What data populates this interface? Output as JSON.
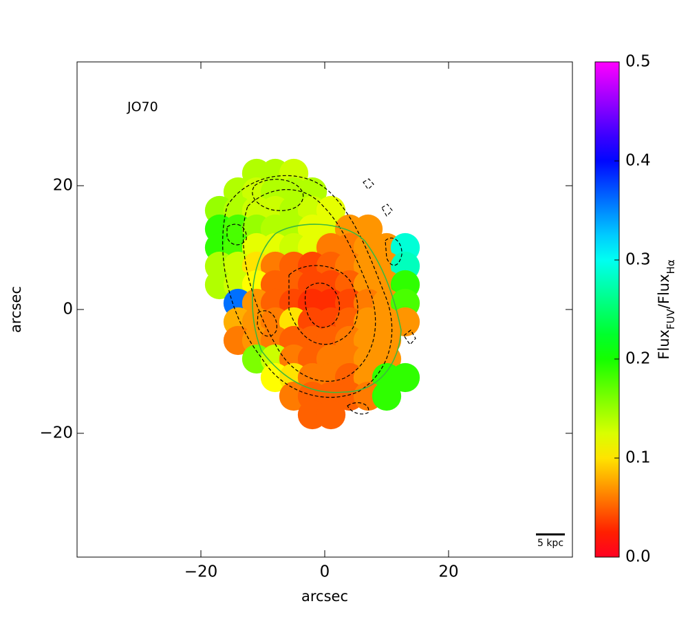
{
  "chart_data": {
    "type": "map",
    "annotation": "JO70",
    "scalebar_label": "5 kpc",
    "xlabel": "arcsec",
    "ylabel": "arcsec",
    "colorbar_label": [
      "Flux",
      "FUV",
      "/Flux",
      "Hα"
    ],
    "colormap": "gist_rainbow",
    "xlim": [
      -40,
      40
    ],
    "ylim": [
      -40,
      40
    ],
    "xticks": [
      {
        "value": -20,
        "label": "−20"
      },
      0,
      20
    ],
    "yticks": [
      {
        "value": -20,
        "label": "−20"
      },
      0,
      20
    ],
    "clim": [
      0,
      0.5
    ],
    "cticks": [
      {
        "value": 0,
        "label": "0.0"
      },
      0.1,
      0.2,
      0.3,
      0.4,
      0.5
    ],
    "x": [
      -11,
      -8,
      -5,
      -14,
      -11,
      -8,
      -5,
      -2,
      -17,
      -14,
      -11,
      -8,
      -5,
      -2,
      1,
      -17,
      -14,
      -11,
      -8,
      -5,
      -2,
      1,
      4,
      7,
      -17,
      -14,
      -11,
      -8,
      -5,
      -2,
      1,
      4,
      7,
      10,
      13,
      -17,
      -14,
      -11,
      -8,
      -5,
      -2,
      1,
      4,
      7,
      10,
      13,
      -17,
      -14,
      -11,
      -8,
      -5,
      -2,
      1,
      4,
      7,
      10,
      13,
      -14,
      -11,
      -8,
      -5,
      -2,
      1,
      4,
      7,
      10,
      13,
      -14,
      -11,
      -8,
      -5,
      -2,
      1,
      4,
      7,
      10,
      13,
      -14,
      -11,
      -8,
      -5,
      -2,
      1,
      4,
      7,
      10,
      -11,
      -8,
      -5,
      -2,
      1,
      4,
      7,
      10,
      -8,
      -5,
      -2,
      1,
      4,
      7,
      10,
      13,
      -5,
      -2,
      1,
      4,
      7,
      10,
      -2,
      1
    ],
    "y": [
      22,
      22,
      22,
      19,
      19,
      19,
      19,
      19,
      16,
      16,
      16,
      16,
      16,
      16,
      16,
      13,
      13,
      13,
      13,
      13,
      13,
      13,
      13,
      13,
      10,
      10,
      10,
      10,
      10,
      10,
      10,
      10,
      10,
      10,
      10,
      7,
      7,
      7,
      7,
      7,
      7,
      7,
      7,
      7,
      7,
      7,
      4,
      4,
      4,
      4,
      4,
      4,
      4,
      4,
      4,
      4,
      4,
      1,
      1,
      1,
      1,
      1,
      1,
      1,
      1,
      1,
      1,
      -2,
      -2,
      -2,
      -2,
      -2,
      -2,
      -2,
      -2,
      -2,
      -2,
      -5,
      -5,
      -5,
      -5,
      -5,
      -5,
      -5,
      -5,
      -5,
      -8,
      -8,
      -8,
      -8,
      -8,
      -8,
      -8,
      -8,
      -11,
      -11,
      -11,
      -11,
      -11,
      -11,
      -11,
      -11,
      -14,
      -14,
      -14,
      -14,
      -14,
      -14,
      -17,
      -17
    ],
    "values": [
      0.14,
      0.14,
      0.13,
      0.14,
      0.13,
      0.14,
      0.14,
      0.14,
      0.15,
      0.14,
      0.13,
      0.13,
      0.14,
      0.13,
      0.12,
      0.19,
      0.18,
      0.15,
      0.14,
      0.14,
      0.12,
      0.12,
      0.07,
      0.07,
      0.19,
      0.18,
      0.12,
      0.12,
      0.13,
      0.12,
      0.06,
      0.06,
      0.07,
      0.07,
      0.29,
      0.14,
      0.13,
      0.1,
      0.06,
      0.05,
      0.04,
      0.05,
      0.06,
      0.07,
      0.07,
      0.28,
      0.14,
      0.13,
      0.11,
      0.05,
      0.05,
      0.04,
      0.04,
      0.05,
      0.07,
      0.07,
      0.19,
      0.36,
      0.07,
      0.05,
      0.04,
      0.03,
      0.03,
      0.04,
      0.06,
      0.07,
      0.18,
      0.08,
      0.07,
      0.06,
      0.1,
      0.04,
      0.04,
      0.05,
      0.07,
      0.07,
      0.07,
      0.06,
      0.07,
      0.06,
      0.05,
      0.05,
      0.05,
      0.06,
      0.07,
      0.07,
      0.16,
      0.13,
      0.06,
      0.05,
      0.06,
      0.06,
      0.07,
      0.07,
      0.11,
      0.1,
      0.06,
      0.06,
      0.05,
      0.07,
      0.19,
      0.19,
      0.06,
      0.05,
      0.05,
      0.05,
      0.06,
      0.19,
      0.05,
      0.05
    ]
  }
}
